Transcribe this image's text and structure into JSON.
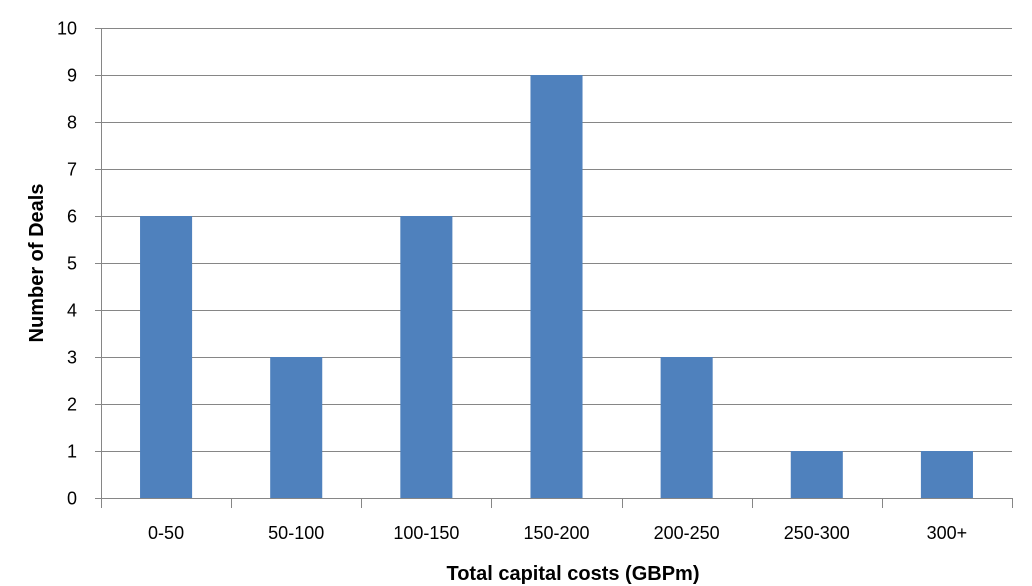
{
  "chart_data": {
    "type": "bar",
    "title": "",
    "xlabel": "Total capital costs (GBPm)",
    "ylabel": "Number of Deals",
    "categories": [
      "0-50",
      "50-100",
      "100-150",
      "150-200",
      "200-250",
      "250-300",
      "300+"
    ],
    "values": [
      6,
      3,
      6,
      9,
      3,
      1,
      1
    ],
    "ylim": [
      0,
      10
    ],
    "yticks": [
      0,
      1,
      2,
      3,
      4,
      5,
      6,
      7,
      8,
      9,
      10
    ],
    "grid": "horizontal",
    "legend": "none",
    "colors": {
      "bar": "#4f81bd",
      "grid": "#868686",
      "axis": "#868686"
    }
  }
}
